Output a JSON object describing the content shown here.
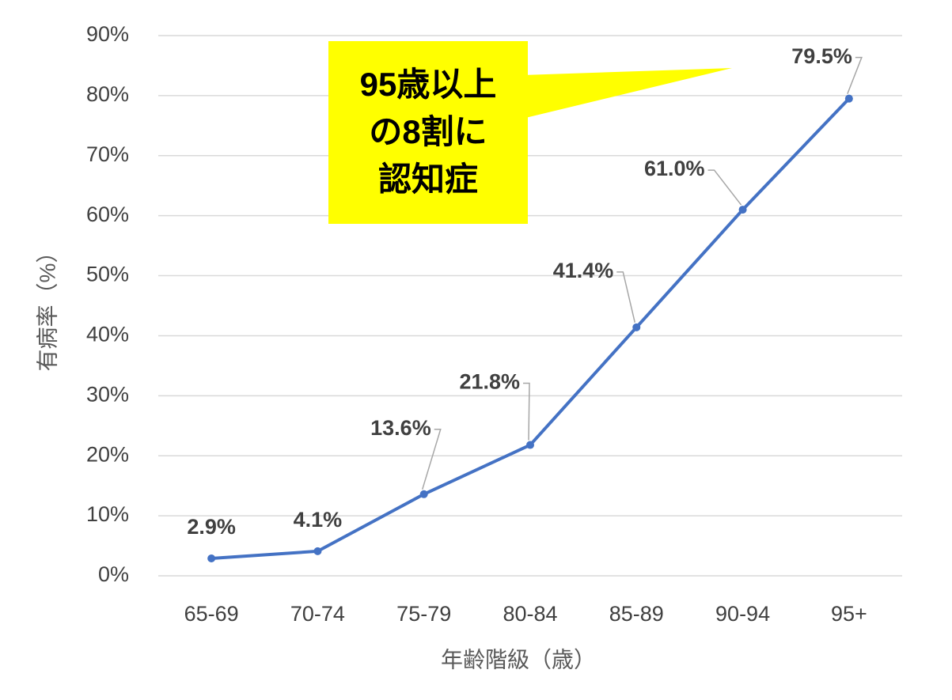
{
  "chart_data": {
    "type": "line",
    "x_label": "年齢階級（歳）",
    "y_label": "有病率（%）",
    "categories": [
      "65-69",
      "70-74",
      "75-79",
      "80-84",
      "85-89",
      "90-94",
      "95+"
    ],
    "series": [
      {
        "color": "#4472c4",
        "values": [
          2.9,
          4.1,
          13.6,
          21.8,
          41.4,
          61.0,
          79.5
        ],
        "value_labels": [
          "2.9%",
          "4.1%",
          "13.6%",
          "21.8%",
          "41.4%",
          "61.0%",
          "79.5%"
        ]
      }
    ],
    "ylim": [
      0,
      90
    ],
    "yticks": [
      {
        "value": 0,
        "label": "0%"
      },
      {
        "value": 10,
        "label": "10%"
      },
      {
        "value": 20,
        "label": "20%"
      },
      {
        "value": 30,
        "label": "30%"
      },
      {
        "value": 40,
        "label": "40%"
      },
      {
        "value": 50,
        "label": "50%"
      },
      {
        "value": 60,
        "label": "60%"
      },
      {
        "value": 70,
        "label": "70%"
      },
      {
        "value": 80,
        "label": "80%"
      },
      {
        "value": 90,
        "label": "90%"
      }
    ],
    "grid": true,
    "annotation": [
      "95歳以上",
      "の8割に",
      "認知症"
    ]
  }
}
